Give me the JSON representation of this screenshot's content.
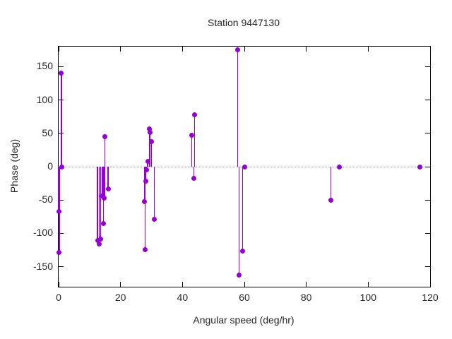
{
  "chart_data": {
    "type": "scatter",
    "style": "impulses-with-points",
    "title": "Station 9447130",
    "xlabel": "Angular speed (deg/hr)",
    "ylabel": "Phase (deg)",
    "xlim": [
      0,
      120
    ],
    "ylim": [
      -180,
      180
    ],
    "xticks": [
      0,
      20,
      40,
      60,
      80,
      100,
      120
    ],
    "yticks": [
      -150,
      -100,
      -50,
      0,
      50,
      100,
      150
    ],
    "grid": false,
    "zero_line": true,
    "legend": "none",
    "point_color": "#9400d3",
    "axis_color": "#000000",
    "zero_line_color": "#999999",
    "points": [
      [
        0.0,
        -67
      ],
      [
        0.2,
        -129
      ],
      [
        0.9,
        140
      ],
      [
        1.0,
        0
      ],
      [
        12.6,
        -111
      ],
      [
        13.1,
        -116
      ],
      [
        13.6,
        -108
      ],
      [
        14.1,
        -44
      ],
      [
        14.5,
        -85
      ],
      [
        14.8,
        -47
      ],
      [
        14.9,
        45
      ],
      [
        16.0,
        -33
      ],
      [
        27.7,
        -52
      ],
      [
        27.9,
        -124
      ],
      [
        28.1,
        -22
      ],
      [
        28.3,
        -5
      ],
      [
        28.8,
        8
      ],
      [
        29.4,
        57
      ],
      [
        29.6,
        51
      ],
      [
        30.0,
        38
      ],
      [
        30.9,
        -79
      ],
      [
        43.0,
        47
      ],
      [
        43.7,
        -17
      ],
      [
        43.9,
        78
      ],
      [
        57.8,
        175
      ],
      [
        58.3,
        -162
      ],
      [
        59.4,
        -126
      ],
      [
        60.1,
        0
      ],
      [
        88.0,
        -50
      ],
      [
        90.7,
        0
      ],
      [
        116.8,
        0
      ]
    ]
  }
}
